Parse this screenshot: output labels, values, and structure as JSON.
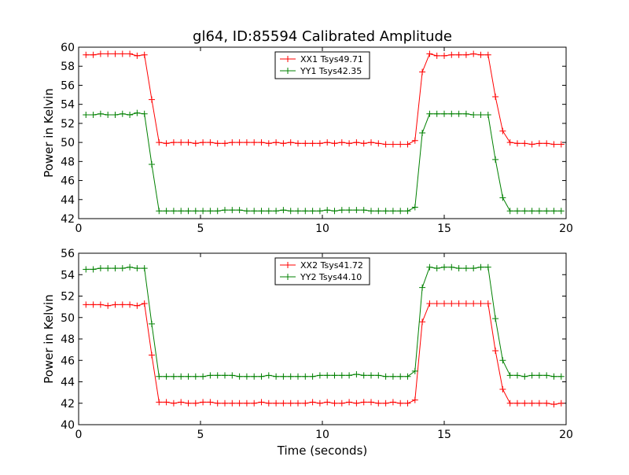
{
  "figure_title": "gl64, ID:85594 Calibrated Amplitude",
  "chart_data": [
    {
      "type": "line",
      "xlabel": "",
      "ylabel": "Power in Kelvin",
      "xlim": [
        0,
        20
      ],
      "ylim": [
        42,
        60
      ],
      "xticks": [
        0,
        5,
        10,
        15,
        20
      ],
      "yticks": [
        42,
        44,
        46,
        48,
        50,
        52,
        54,
        56,
        58,
        60
      ],
      "grid": false,
      "legend": "upper-center",
      "x": [
        0.3,
        0.6,
        0.9,
        1.2,
        1.5,
        1.8,
        2.1,
        2.4,
        2.7,
        3.0,
        3.3,
        3.6,
        3.9,
        4.2,
        4.5,
        4.8,
        5.1,
        5.4,
        5.7,
        6.0,
        6.3,
        6.6,
        6.9,
        7.2,
        7.5,
        7.8,
        8.1,
        8.4,
        8.7,
        9.0,
        9.3,
        9.6,
        9.9,
        10.2,
        10.5,
        10.8,
        11.1,
        11.4,
        11.7,
        12.0,
        12.3,
        12.6,
        12.9,
        13.2,
        13.5,
        13.8,
        14.1,
        14.4,
        14.7,
        15.0,
        15.3,
        15.6,
        15.9,
        16.2,
        16.5,
        16.8,
        17.1,
        17.4,
        17.7,
        18.0,
        18.3,
        18.6,
        18.9,
        19.2,
        19.5,
        19.8
      ],
      "series": [
        {
          "name": "XX1 Tsys49.71",
          "color": "#ff0000",
          "values": [
            59.2,
            59.2,
            59.3,
            59.3,
            59.3,
            59.3,
            59.3,
            59.1,
            59.2,
            54.5,
            50.0,
            49.9,
            50.0,
            50.0,
            50.0,
            49.9,
            50.0,
            50.0,
            49.9,
            49.9,
            50.0,
            50.0,
            50.0,
            50.0,
            50.0,
            49.9,
            50.0,
            49.9,
            50.0,
            49.9,
            49.9,
            49.9,
            49.9,
            50.0,
            49.9,
            50.0,
            49.9,
            50.0,
            49.9,
            50.0,
            49.9,
            49.8,
            49.8,
            49.8,
            49.8,
            50.2,
            57.4,
            59.3,
            59.1,
            59.1,
            59.2,
            59.2,
            59.2,
            59.3,
            59.2,
            59.2,
            54.8,
            51.2,
            50.0,
            49.9,
            49.9,
            49.8,
            49.9,
            49.9,
            49.8,
            49.8
          ]
        },
        {
          "name": "YY1 Tsys42.35",
          "color": "#008000",
          "values": [
            52.9,
            52.9,
            53.0,
            52.9,
            52.9,
            53.0,
            52.9,
            53.1,
            53.0,
            47.7,
            42.8,
            42.8,
            42.8,
            42.8,
            42.8,
            42.8,
            42.8,
            42.8,
            42.8,
            42.9,
            42.9,
            42.9,
            42.8,
            42.8,
            42.8,
            42.8,
            42.8,
            42.9,
            42.8,
            42.8,
            42.8,
            42.8,
            42.8,
            42.9,
            42.8,
            42.9,
            42.9,
            42.9,
            42.9,
            42.8,
            42.8,
            42.8,
            42.8,
            42.8,
            42.8,
            43.2,
            51.0,
            53.0,
            53.0,
            53.0,
            53.0,
            53.0,
            53.0,
            52.9,
            52.9,
            52.9,
            48.2,
            44.2,
            42.8,
            42.8,
            42.8,
            42.8,
            42.8,
            42.8,
            42.8,
            42.8
          ]
        }
      ]
    },
    {
      "type": "line",
      "xlabel": "Time (seconds)",
      "ylabel": "Power in Kelvin",
      "xlim": [
        0,
        20
      ],
      "ylim": [
        40,
        56
      ],
      "xticks": [
        0,
        5,
        10,
        15,
        20
      ],
      "yticks": [
        40,
        42,
        44,
        46,
        48,
        50,
        52,
        54,
        56
      ],
      "grid": false,
      "legend": "upper-center",
      "x": [
        0.3,
        0.6,
        0.9,
        1.2,
        1.5,
        1.8,
        2.1,
        2.4,
        2.7,
        3.0,
        3.3,
        3.6,
        3.9,
        4.2,
        4.5,
        4.8,
        5.1,
        5.4,
        5.7,
        6.0,
        6.3,
        6.6,
        6.9,
        7.2,
        7.5,
        7.8,
        8.1,
        8.4,
        8.7,
        9.0,
        9.3,
        9.6,
        9.9,
        10.2,
        10.5,
        10.8,
        11.1,
        11.4,
        11.7,
        12.0,
        12.3,
        12.6,
        12.9,
        13.2,
        13.5,
        13.8,
        14.1,
        14.4,
        14.7,
        15.0,
        15.3,
        15.6,
        15.9,
        16.2,
        16.5,
        16.8,
        17.1,
        17.4,
        17.7,
        18.0,
        18.3,
        18.6,
        18.9,
        19.2,
        19.5,
        19.8
      ],
      "series": [
        {
          "name": "XX2 Tsys41.72",
          "color": "#ff0000",
          "values": [
            51.2,
            51.2,
            51.2,
            51.1,
            51.2,
            51.2,
            51.2,
            51.1,
            51.3,
            46.5,
            42.1,
            42.1,
            42.0,
            42.1,
            42.0,
            42.0,
            42.1,
            42.1,
            42.0,
            42.0,
            42.0,
            42.0,
            42.0,
            42.0,
            42.1,
            42.0,
            42.0,
            42.0,
            42.0,
            42.0,
            42.0,
            42.1,
            42.0,
            42.1,
            42.0,
            42.0,
            42.1,
            42.0,
            42.1,
            42.1,
            42.0,
            42.0,
            42.1,
            42.0,
            42.0,
            42.3,
            49.6,
            51.3,
            51.3,
            51.3,
            51.3,
            51.3,
            51.3,
            51.3,
            51.3,
            51.3,
            46.9,
            43.3,
            42.0,
            42.0,
            42.0,
            42.0,
            42.0,
            42.0,
            41.9,
            42.0
          ]
        },
        {
          "name": "YY2 Tsys44.10",
          "color": "#008000",
          "values": [
            54.5,
            54.5,
            54.6,
            54.6,
            54.6,
            54.6,
            54.7,
            54.6,
            54.6,
            49.4,
            44.5,
            44.5,
            44.5,
            44.5,
            44.5,
            44.5,
            44.5,
            44.6,
            44.6,
            44.6,
            44.6,
            44.5,
            44.5,
            44.5,
            44.5,
            44.6,
            44.5,
            44.5,
            44.5,
            44.5,
            44.5,
            44.5,
            44.6,
            44.6,
            44.6,
            44.6,
            44.6,
            44.7,
            44.6,
            44.6,
            44.6,
            44.5,
            44.5,
            44.5,
            44.5,
            45.0,
            52.8,
            54.7,
            54.6,
            54.7,
            54.7,
            54.6,
            54.6,
            54.6,
            54.7,
            54.7,
            49.9,
            46.0,
            44.6,
            44.6,
            44.5,
            44.6,
            44.6,
            44.6,
            44.5,
            44.5
          ]
        }
      ]
    }
  ]
}
